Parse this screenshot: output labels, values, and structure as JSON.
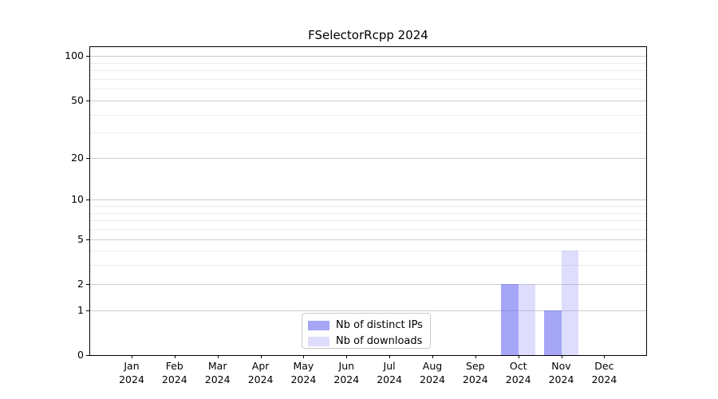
{
  "chart_data": {
    "type": "bar",
    "title": "FSelectorRcpp 2024",
    "xlabel": "",
    "ylabel": "",
    "categories": [
      "Jan 2024",
      "Feb 2024",
      "Mar 2024",
      "Apr 2024",
      "May 2024",
      "Jun 2024",
      "Jul 2024",
      "Aug 2024",
      "Sep 2024",
      "Oct 2024",
      "Nov 2024",
      "Dec 2024"
    ],
    "series": [
      {
        "name": "Nb of distinct IPs",
        "color": "rgba(85,85,240,0.52)",
        "values": [
          0,
          0,
          0,
          0,
          0,
          0,
          0,
          0,
          0,
          2,
          1,
          0
        ]
      },
      {
        "name": "Nb of downloads",
        "color": "rgba(160,160,246,0.35)",
        "values": [
          0,
          0,
          0,
          0,
          0,
          0,
          0,
          0,
          0,
          2,
          4,
          0
        ]
      }
    ],
    "y_axis": {
      "scale": "log1p",
      "ticks": [
        0,
        1,
        2,
        5,
        10,
        20,
        50,
        100
      ],
      "minor_ticks": [
        3,
        4,
        6,
        7,
        8,
        9,
        30,
        40,
        60,
        70,
        80,
        90
      ],
      "ylim": [
        0,
        115
      ]
    },
    "legend": {
      "position": "lower center"
    },
    "grid": true,
    "colors": {
      "major_grid": "#cccccc",
      "minor_grid": "#ececec",
      "axis": "#000000",
      "background": "#ffffff"
    }
  }
}
